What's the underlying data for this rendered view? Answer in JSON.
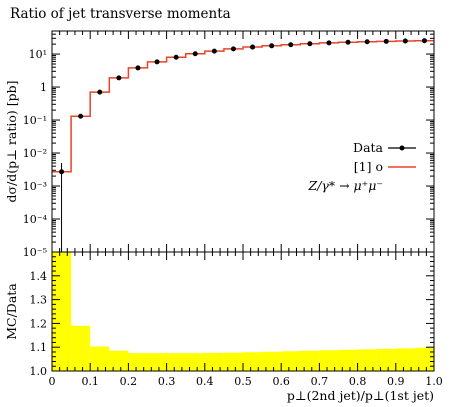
{
  "title": "Ratio of jet transverse momenta",
  "colors": {
    "data": "#000000",
    "mc": "#e8442a",
    "band": "#ffff00"
  },
  "chart_data": [
    {
      "type": "line",
      "panel": "main",
      "title": "Ratio of jet transverse momenta",
      "ylabel": "dσ/d(p⊥ ratio) [pb]",
      "yscale": "log",
      "ylim": [
        1e-05,
        50
      ],
      "xlim": [
        0,
        1
      ],
      "grid": false,
      "legend_position": "right",
      "y_tick_labels": [
        "10⁻⁵",
        "10⁻⁴",
        "10⁻³",
        "10⁻²",
        "10⁻¹",
        "1",
        "10¹"
      ],
      "legend": [
        {
          "label": "Data",
          "style": "points"
        },
        {
          "label": "[1] o",
          "style": "line"
        },
        {
          "label": "Z/γ* → μ⁺μ⁻",
          "style": "text"
        }
      ],
      "bin_edges": [
        0,
        0.05,
        0.1,
        0.15,
        0.2,
        0.25,
        0.3,
        0.35,
        0.4,
        0.45,
        0.5,
        0.55,
        0.6,
        0.65,
        0.7,
        0.75,
        0.8,
        0.85,
        0.9,
        0.95,
        1.0
      ],
      "series": [
        {
          "name": "Data",
          "x": [
            0.025,
            0.075,
            0.125,
            0.175,
            0.225,
            0.275,
            0.325,
            0.375,
            0.425,
            0.475,
            0.525,
            0.575,
            0.625,
            0.675,
            0.725,
            0.775,
            0.825,
            0.875,
            0.925,
            0.975
          ],
          "y": [
            0.0027,
            0.13,
            0.7,
            1.9,
            3.8,
            5.8,
            8.0,
            10.2,
            12.3,
            14.4,
            16.3,
            17.8,
            19.2,
            20.6,
            21.8,
            22.8,
            23.6,
            24.3,
            24.9,
            25.4
          ],
          "y_err_low": [
            0.0027,
            0.005,
            0.02,
            0.04,
            0.06,
            0.07,
            0.08,
            0.09,
            0.1,
            0.1,
            0.1,
            0.1,
            0.1,
            0.1,
            0.1,
            0.1,
            0.1,
            0.1,
            0.1,
            0.1
          ],
          "y_err_high": [
            0.0023,
            0.005,
            0.02,
            0.04,
            0.06,
            0.07,
            0.08,
            0.09,
            0.1,
            0.1,
            0.1,
            0.1,
            0.1,
            0.1,
            0.1,
            0.1,
            0.1,
            0.1,
            0.1,
            0.1
          ]
        },
        {
          "name": "[1] o",
          "style": "step",
          "values": [
            0.0027,
            0.13,
            0.7,
            1.9,
            3.8,
            5.8,
            8.0,
            10.2,
            12.3,
            14.4,
            16.3,
            17.8,
            19.2,
            20.6,
            21.8,
            22.8,
            23.6,
            24.3,
            24.9,
            25.4
          ]
        }
      ]
    },
    {
      "type": "area",
      "panel": "ratio",
      "xlabel": "p⊥(2nd jet)/p⊥(1st jet)",
      "ylabel": "MC/Data",
      "xlim": [
        0,
        1
      ],
      "ylim": [
        1.0,
        1.5
      ],
      "grid": false,
      "x_tick_labels": [
        "0",
        "0.1",
        "0.2",
        "0.3",
        "0.4",
        "0.5",
        "0.6",
        "0.7",
        "0.8",
        "0.9",
        "1.0"
      ],
      "y_tick_labels": [
        "1.0",
        "1.1",
        "1.2",
        "1.3",
        "1.4"
      ],
      "bin_edges": [
        0,
        0.05,
        0.1,
        0.15,
        0.2,
        0.25,
        0.3,
        0.35,
        0.4,
        0.45,
        0.5,
        0.55,
        0.6,
        0.65,
        0.7,
        0.75,
        0.8,
        0.85,
        0.9,
        0.95,
        1.0
      ],
      "band_upper": [
        1.5,
        1.19,
        1.103,
        1.085,
        1.075,
        1.075,
        1.075,
        1.075,
        1.076,
        1.077,
        1.079,
        1.081,
        1.083,
        1.085,
        1.087,
        1.089,
        1.091,
        1.093,
        1.095,
        1.098
      ]
    }
  ]
}
